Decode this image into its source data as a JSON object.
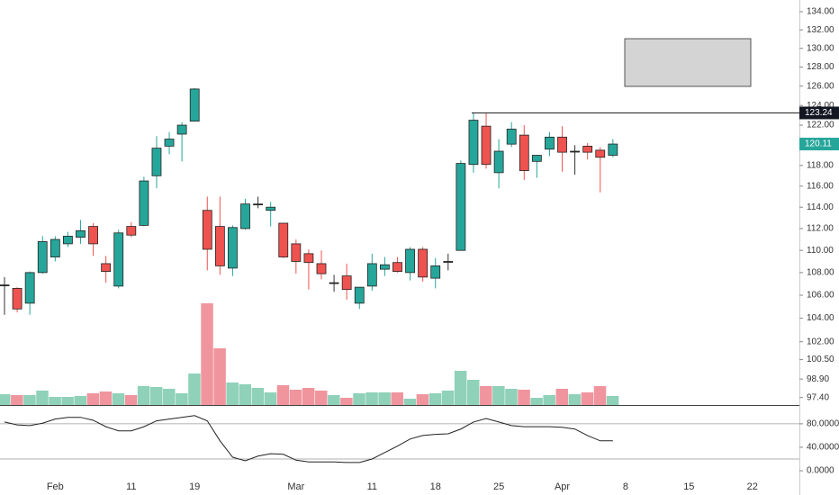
{
  "chart_data": {
    "type": "candlestick",
    "log_scale": true,
    "up_color": "#26a69a",
    "down_color": "#ef5350",
    "flat_color": "#333333",
    "volume_up_color": "#8fd1b9",
    "volume_down_color": "#f0959e",
    "categories": [
      null,
      null,
      null,
      null,
      "Feb",
      null,
      null,
      null,
      null,
      null,
      "11",
      null,
      null,
      null,
      null,
      "19",
      null,
      null,
      null,
      null,
      null,
      null,
      null,
      "Mar",
      null,
      null,
      null,
      null,
      null,
      "11",
      null,
      null,
      null,
      null,
      "18",
      null,
      null,
      null,
      null,
      "25",
      null,
      null,
      null,
      null,
      "Apr",
      null,
      null,
      null,
      null,
      "8",
      null,
      null,
      null,
      null,
      "15",
      null,
      null,
      null,
      null,
      "22"
    ],
    "open": [
      106.9,
      106.6,
      105.3,
      108.0,
      109.4,
      110.6,
      111.2,
      112.2,
      108.8,
      106.8,
      112.2,
      112.3,
      117.0,
      119.9,
      121.1,
      122.4,
      113.7,
      112.2,
      108.4,
      112.0,
      114.3,
      113.7,
      112.5,
      110.6,
      109.7,
      108.8,
      107.1,
      107.7,
      105.3,
      106.8,
      108.3,
      108.9,
      108.0,
      110.1,
      107.5,
      109.0,
      110.0,
      118.1,
      121.9,
      117.3,
      120.1,
      121.0,
      118.4,
      119.6,
      120.8,
      119.4,
      119.9,
      119.5,
      119.0,
      null,
      null,
      null,
      null,
      null,
      null,
      null,
      null,
      null,
      null,
      null
    ],
    "high": [
      107.6,
      106.7,
      108.1,
      111.3,
      111.3,
      111.7,
      112.8,
      112.5,
      109.5,
      111.9,
      112.6,
      116.9,
      120.9,
      121.3,
      122.3,
      125.8,
      115.0,
      115.0,
      112.3,
      114.8,
      115.0,
      114.5,
      112.5,
      111.0,
      110.1,
      110.0,
      107.8,
      108.8,
      106.7,
      109.7,
      109.4,
      109.4,
      110.3,
      110.3,
      109.3,
      109.7,
      118.5,
      123.2,
      123.2,
      120.6,
      122.3,
      122.0,
      119.0,
      121.3,
      121.9,
      120.0,
      120.2,
      119.8,
      120.6,
      null,
      null,
      null,
      null,
      null,
      null,
      null,
      null,
      null,
      null,
      null
    ],
    "low": [
      104.3,
      104.5,
      104.3,
      107.9,
      109.0,
      110.3,
      110.6,
      109.5,
      107.1,
      106.6,
      111.2,
      112.2,
      115.8,
      119.1,
      118.4,
      122.4,
      108.2,
      107.8,
      107.7,
      111.9,
      113.9,
      112.2,
      109.3,
      107.9,
      106.5,
      107.4,
      106.3,
      105.6,
      104.8,
      106.4,
      107.7,
      108.0,
      107.3,
      107.2,
      106.6,
      108.2,
      110.0,
      117.3,
      117.7,
      115.8,
      119.8,
      116.6,
      116.8,
      118.9,
      117.4,
      117.1,
      118.6,
      115.4,
      118.8,
      null,
      null,
      null,
      null,
      null,
      null,
      null,
      null,
      null,
      null,
      null
    ],
    "close": [
      106.9,
      104.8,
      108.0,
      110.8,
      111.0,
      111.3,
      111.8,
      110.6,
      108.1,
      111.6,
      111.4,
      116.5,
      119.7,
      120.6,
      122.0,
      125.7,
      110.1,
      108.6,
      112.1,
      114.3,
      114.3,
      114.0,
      109.4,
      109.0,
      108.9,
      107.9,
      107.1,
      106.5,
      106.7,
      108.8,
      108.7,
      108.1,
      110.1,
      107.6,
      108.6,
      109.0,
      118.2,
      122.5,
      118.1,
      119.4,
      121.6,
      117.5,
      119.0,
      120.8,
      119.3,
      119.4,
      119.3,
      118.8,
      120.11,
      null,
      null,
      null,
      null,
      null,
      null,
      null,
      null,
      null,
      null,
      null
    ],
    "volume": [
      12,
      11,
      11,
      16,
      9,
      9,
      10,
      13,
      15,
      13,
      11,
      21,
      20,
      18,
      13,
      35,
      113,
      63,
      25,
      23,
      19,
      14,
      22,
      17,
      19,
      16,
      11,
      8,
      13,
      14,
      14,
      14,
      7,
      12,
      13,
      16,
      38,
      28,
      21,
      21,
      18,
      17,
      8,
      11,
      18,
      12,
      14,
      21,
      10,
      null,
      null,
      null,
      null,
      null,
      null,
      null,
      null,
      null,
      null,
      null
    ],
    "ylim": [
      96.8,
      135.3
    ],
    "yticks": [
      {
        "value": 134,
        "label": "134.00"
      },
      {
        "value": 132,
        "label": "132.00"
      },
      {
        "value": 130,
        "label": "130.00"
      },
      {
        "value": 128,
        "label": "128.00"
      },
      {
        "value": 126,
        "label": "126.00"
      },
      {
        "value": 124,
        "label": "124.00"
      },
      {
        "value": 122,
        "label": "122.00"
      },
      {
        "value": 120,
        "label": "120.00"
      },
      {
        "value": 118,
        "label": "118.00"
      },
      {
        "value": 116,
        "label": "116.00"
      },
      {
        "value": 114,
        "label": "114.00"
      },
      {
        "value": 112,
        "label": "112.00"
      },
      {
        "value": 110,
        "label": "110.00"
      },
      {
        "value": 108,
        "label": "108.00"
      },
      {
        "value": 106,
        "label": "106.00"
      },
      {
        "value": 104,
        "label": "104.00"
      },
      {
        "value": 102,
        "label": "102.00"
      },
      {
        "value": 100.5,
        "label": "100.50"
      },
      {
        "value": 98.9,
        "label": "98.90"
      },
      {
        "value": 97.4,
        "label": "97.40"
      }
    ],
    "hline": 123.24,
    "indicator": {
      "type": "line",
      "color": "#222222",
      "values": [
        83,
        78,
        77,
        81,
        88,
        91,
        91,
        86,
        75,
        68,
        68,
        75,
        85,
        88,
        91,
        94,
        85,
        51,
        23,
        17,
        25,
        29,
        28,
        18,
        15,
        15,
        15,
        14,
        14,
        20,
        31,
        42,
        54,
        60,
        62,
        63,
        71,
        83,
        89,
        83,
        77,
        75,
        75,
        75,
        74,
        71,
        60,
        51,
        51,
        null,
        null,
        null,
        null,
        null,
        null,
        null,
        null,
        null,
        null,
        null
      ],
      "ylim": [
        -26,
        112
      ],
      "yticks": [
        {
          "value": 80,
          "label": "80.0000"
        },
        {
          "value": 40,
          "label": "40.0000"
        },
        {
          "value": 0,
          "label": "0.0000"
        }
      ],
      "bands": [
        80,
        20
      ]
    }
  }
}
